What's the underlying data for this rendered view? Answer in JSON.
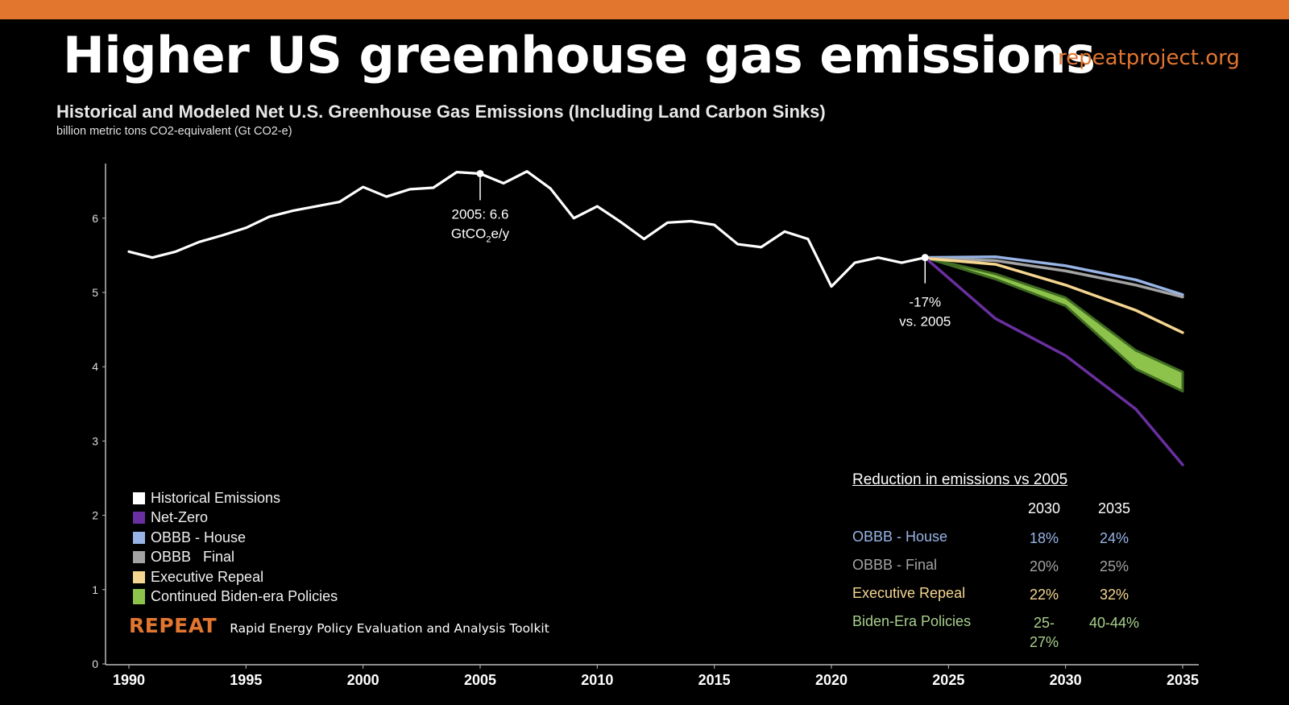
{
  "header": {
    "title": "Higher US greenhouse gas emissions",
    "site": "repeatproject.org",
    "accent_color": "#e2762f"
  },
  "chart_data": {
    "type": "line",
    "title": "Historical and Modeled Net U.S. Greenhouse Gas Emissions (Including Land Carbon Sinks)",
    "subtitle": "billion metric tons CO2-equivalent (Gt CO2-e)",
    "xlim": [
      1990,
      2035
    ],
    "ylim": [
      0,
      6.75
    ],
    "x_ticks": [
      "1990",
      "1995",
      "2000",
      "2005",
      "2010",
      "2015",
      "2020",
      "2025",
      "2030",
      "2035"
    ],
    "y_ticks": [
      "0",
      "1",
      "2",
      "3",
      "4",
      "5",
      "6"
    ],
    "grid": false,
    "legend_position": "bottom-left",
    "series": [
      {
        "name": "Historical Emissions",
        "color": "#ffffff",
        "x": [
          1990,
          1991,
          1992,
          1993,
          1994,
          1995,
          1996,
          1997,
          1998,
          1999,
          2000,
          2001,
          2002,
          2003,
          2004,
          2005,
          2006,
          2007,
          2008,
          2009,
          2010,
          2011,
          2012,
          2013,
          2014,
          2015,
          2016,
          2017,
          2018,
          2019,
          2020,
          2021,
          2022,
          2023,
          2024
        ],
        "y": [
          5.55,
          5.47,
          5.55,
          5.68,
          5.77,
          5.87,
          6.02,
          6.1,
          6.16,
          6.22,
          6.42,
          6.29,
          6.39,
          6.41,
          6.62,
          6.6,
          6.47,
          6.63,
          6.4,
          6.0,
          6.16,
          5.95,
          5.72,
          5.94,
          5.96,
          5.91,
          5.65,
          5.61,
          5.82,
          5.72,
          5.08,
          5.4,
          5.47,
          5.4,
          5.47
        ]
      },
      {
        "name": "Net-Zero",
        "color": "#6a2fa0",
        "x": [
          2024,
          2027,
          2030,
          2033,
          2035
        ],
        "y": [
          5.47,
          4.65,
          4.15,
          3.43,
          2.68
        ]
      },
      {
        "name": "OBBB - House",
        "color": "#98b4e6",
        "x": [
          2024,
          2027,
          2030,
          2033,
          2035
        ],
        "y": [
          5.47,
          5.48,
          5.36,
          5.17,
          4.97
        ]
      },
      {
        "name": "OBBB   Final",
        "color": "#a3a3a3",
        "x": [
          2024,
          2027,
          2030,
          2033,
          2035
        ],
        "y": [
          5.46,
          5.43,
          5.29,
          5.1,
          4.94
        ]
      },
      {
        "name": "Executive Repeal",
        "color": "#f5d690",
        "x": [
          2024,
          2027,
          2030,
          2033,
          2035
        ],
        "y": [
          5.46,
          5.38,
          5.1,
          4.76,
          4.46
        ]
      },
      {
        "name": "Continued Biden-era Policies",
        "color": "#8ec34b",
        "type": "band",
        "x": [
          2024,
          2027,
          2030,
          2033,
          2035
        ],
        "y_high": [
          5.47,
          5.25,
          4.93,
          4.22,
          3.93
        ],
        "y_low": [
          5.47,
          5.18,
          4.82,
          3.97,
          3.67
        ]
      }
    ],
    "annotations": [
      {
        "x": 2005,
        "y": 6.6,
        "line1": "2005: 6.6",
        "line2_pre": "GtCO",
        "line2_sub": "2",
        "line2_post": "e/y"
      },
      {
        "x": 2024,
        "y": 5.47,
        "line1": "-17%",
        "line2": "vs. 2005"
      }
    ]
  },
  "legend": [
    {
      "label": "Historical Emissions",
      "color": "#ffffff"
    },
    {
      "label": "Net-Zero",
      "color": "#6a2fa0"
    },
    {
      "label": "OBBB - House",
      "color": "#98b4e6"
    },
    {
      "label": "OBBB   Final",
      "color": "#a3a3a3"
    },
    {
      "label": "Executive Repeal",
      "color": "#f5d690"
    },
    {
      "label": "Continued Biden-era Policies",
      "color": "#8ec34b"
    }
  ],
  "reduction_table": {
    "title": "Reduction in emissions vs 2005",
    "columns": [
      "2030",
      "2035"
    ],
    "rows": [
      {
        "label": "OBBB - House",
        "v2030": "18%",
        "v2035": "24%",
        "color": "#98b4e6"
      },
      {
        "label": "OBBB - Final",
        "v2030": "20%",
        "v2035": "25%",
        "color": "#a3a3a3"
      },
      {
        "label": "Executive Repeal",
        "v2030": "22%",
        "v2035": "32%",
        "color": "#f5d690"
      },
      {
        "label": "Biden-Era Policies",
        "v2030": "25-\n27%",
        "v2035": "40-44%",
        "color": "#a8d08d"
      }
    ]
  },
  "footer": {
    "brand": "REPEAT",
    "tagline": "Rapid Energy Policy Evaluation and Analysis Toolkit"
  }
}
